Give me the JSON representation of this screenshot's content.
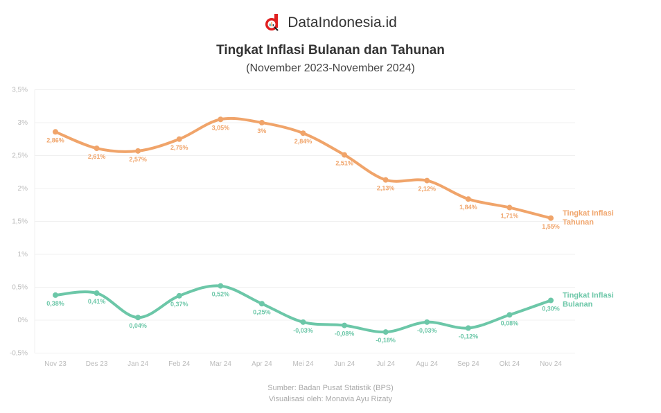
{
  "brand": {
    "name": "DataIndonesia.id",
    "logo": "magnifier-d-logo",
    "logo_color": "#e02020"
  },
  "header": {
    "title": "Tingkat Inflasi Bulanan dan Tahunan",
    "subtitle": "(November 2023-November 2024)"
  },
  "footer": {
    "source": "Sumber: Badan Pusat Statistik (BPS)",
    "visualized_by": "Visualisasi oleh: Monavia Ayu Rizaty"
  },
  "colors": {
    "annual": "#f0a46a",
    "monthly": "#6cc7a8",
    "grid": "#f0f0f0"
  },
  "chart_data": {
    "type": "line",
    "title": "Tingkat Inflasi Bulanan dan Tahunan",
    "subtitle": "(November 2023-November 2024)",
    "xlabel": "",
    "ylabel": "",
    "ylim": [
      -0.5,
      3.5
    ],
    "yticks": [
      "3,5%",
      "3%",
      "2,5%",
      "2%",
      "1,5%",
      "1%",
      "0,5%",
      "0%",
      "-0,5%"
    ],
    "ytick_values": [
      3.5,
      3,
      2.5,
      2,
      1.5,
      1,
      0.5,
      0,
      -0.5
    ],
    "grid": true,
    "legend_position": "inline-right",
    "categories": [
      "Nov 23",
      "Des 23",
      "Jan 24",
      "Feb 24",
      "Mar 24",
      "Apr 24",
      "Mei 24",
      "Jun 24",
      "Jul 24",
      "Agu 24",
      "Sep 24",
      "Okt 24",
      "Nov 24"
    ],
    "series": [
      {
        "name": "Tingkat Inflasi Tahunan",
        "color": "#f0a46a",
        "values": [
          2.86,
          2.61,
          2.57,
          2.75,
          3.05,
          3.0,
          2.84,
          2.51,
          2.13,
          2.12,
          1.84,
          1.71,
          1.55
        ],
        "labels": [
          "2,86%",
          "2,61%",
          "2,57%",
          "2,75%",
          "3,05%",
          "3%",
          "2,84%",
          "2,51%",
          "2,13%",
          "2,12%",
          "1,84%",
          "1,71%",
          "1,55%"
        ]
      },
      {
        "name": "Tingkat Inflasi Bulanan",
        "color": "#6cc7a8",
        "values": [
          0.38,
          0.41,
          0.04,
          0.37,
          0.52,
          0.25,
          -0.03,
          -0.08,
          -0.18,
          -0.03,
          -0.12,
          0.08,
          0.3
        ],
        "labels": [
          "0,38%",
          "0,41%",
          "0,04%",
          "0,37%",
          "0,52%",
          "0,25%",
          "-0,03%",
          "-0,08%",
          "-0,18%",
          "-0,03%",
          "-0,12%",
          "0,08%",
          "0,30%"
        ]
      }
    ]
  }
}
